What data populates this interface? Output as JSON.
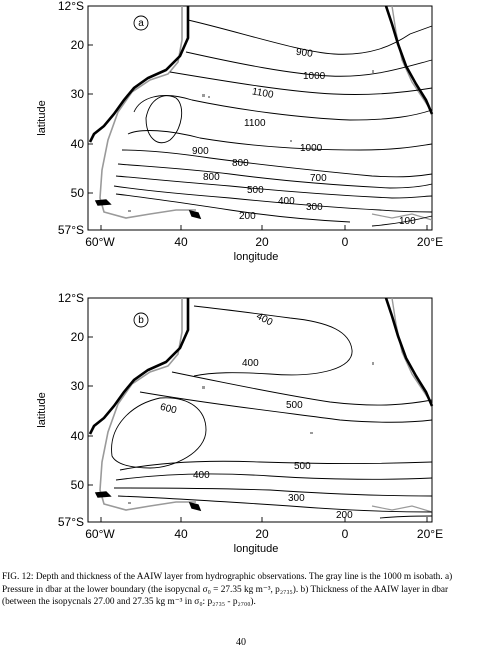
{
  "figure": {
    "panels": [
      {
        "id": "a",
        "panel_letter": "a",
        "xlabel": "longitude",
        "ylabel": "latitude",
        "x_ticks": [
          "60°W",
          "40",
          "20",
          "0",
          "20°E"
        ],
        "y_ticks": [
          "12°S",
          "20",
          "30",
          "40",
          "50",
          "57°S"
        ],
        "contour_labels": [
          "900",
          "1000",
          "1100",
          "1100",
          "1000",
          "900",
          "800",
          "800",
          "700",
          "500",
          "400",
          "300",
          "200",
          "100"
        ]
      },
      {
        "id": "b",
        "panel_letter": "b",
        "xlabel": "longitude",
        "ylabel": "latitude",
        "x_ticks": [
          "60°W",
          "40",
          "20",
          "0",
          "20°E"
        ],
        "y_ticks": [
          "12°S",
          "20",
          "30",
          "40",
          "50",
          "57°S"
        ],
        "contour_labels": [
          "400",
          "400",
          "500",
          "600",
          "500",
          "400",
          "300",
          "200"
        ]
      }
    ],
    "caption": {
      "fig_label": "FIG. 12:",
      "text": " Depth and thickness of the AAIW layer from hydrographic observations. The gray line is the 1000 m isobath. a) Pressure in dbar at the lower boundary (the isopycnal σ₀ = 27.35 kg m⁻³, p₂₇₃₅). b) Thickness of the AAIW layer in dbar (between the isopycnals 27.00 and 27.35 kg m⁻³ in σ₀: p₂₇₃₅ - p₂₇₀₀)."
    },
    "page_number": "40"
  }
}
